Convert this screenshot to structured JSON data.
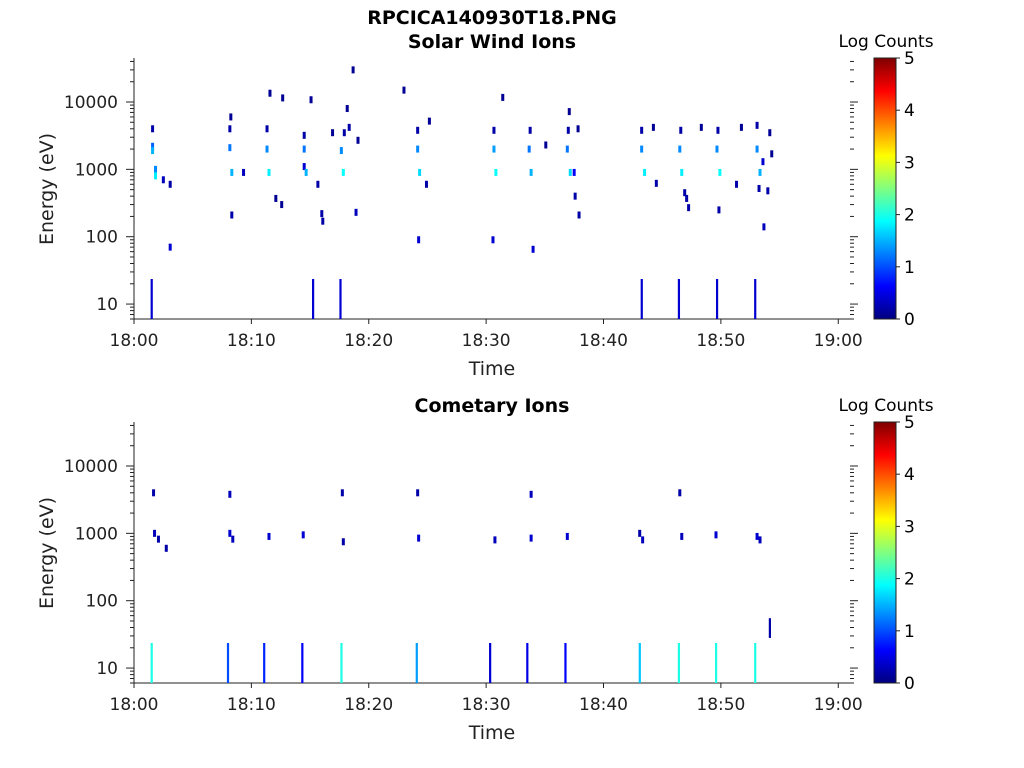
{
  "figure": {
    "title": "RPCICA140930T18.PNG"
  },
  "chart_data": [
    {
      "type": "heatmap",
      "title": "Solar Wind Ions",
      "xlabel": "Time",
      "ylabel": "Energy (eV)",
      "y_scale": "log",
      "xlim": [
        "18:00",
        "19:01"
      ],
      "ylim": [
        6,
        45000
      ],
      "x_tick_labels": [
        "18:00",
        "18:10",
        "18:20",
        "18:30",
        "18:40",
        "18:50",
        "19:00"
      ],
      "y_tick_labels": [
        "10",
        "100",
        "1000",
        "10000"
      ],
      "colorbar": {
        "label": "Log Counts",
        "range": [
          0,
          5
        ],
        "ticks": [
          "0",
          "1",
          "2",
          "3",
          "4",
          "5"
        ],
        "colormap": "jet"
      },
      "points": [
        {
          "t": "18:01:35",
          "e": 4000,
          "c": 0.2
        },
        {
          "t": "18:01:35",
          "e": 2200,
          "c": 1.1
        },
        {
          "t": "18:01:35",
          "e": 1900,
          "c": 1.5
        },
        {
          "t": "18:01:50",
          "e": 1000,
          "c": 1.3
        },
        {
          "t": "18:01:50",
          "e": 800,
          "c": 1.8
        },
        {
          "t": "18:02:30",
          "e": 700,
          "c": 0.3
        },
        {
          "t": "18:03:05",
          "e": 600,
          "c": 0.2
        },
        {
          "t": "18:03:05",
          "e": 70,
          "c": 0.4
        },
        {
          "t": "18:08:10",
          "e": 2100,
          "c": 1.2
        },
        {
          "t": "18:08:10",
          "e": 4000,
          "c": 0.2
        },
        {
          "t": "18:08:15",
          "e": 6000,
          "c": 0.1
        },
        {
          "t": "18:08:20",
          "e": 900,
          "c": 1.5
        },
        {
          "t": "18:08:20",
          "e": 210,
          "c": 0.2
        },
        {
          "t": "18:09:20",
          "e": 900,
          "c": 0.3
        },
        {
          "t": "18:11:20",
          "e": 2000,
          "c": 1.3
        },
        {
          "t": "18:11:20",
          "e": 4000,
          "c": 0.2
        },
        {
          "t": "18:11:30",
          "e": 900,
          "c": 1.8
        },
        {
          "t": "18:11:35",
          "e": 13500,
          "c": 0.1
        },
        {
          "t": "18:12:05",
          "e": 370,
          "c": 0.1
        },
        {
          "t": "18:12:35",
          "e": 300,
          "c": 0.1
        },
        {
          "t": "18:12:40",
          "e": 11500,
          "c": 0.1
        },
        {
          "t": "18:14:30",
          "e": 2000,
          "c": 1.2
        },
        {
          "t": "18:14:30",
          "e": 3200,
          "c": 0.2
        },
        {
          "t": "18:14:30",
          "e": 1100,
          "c": 0.4
        },
        {
          "t": "18:14:40",
          "e": 900,
          "c": 1.5
        },
        {
          "t": "18:15:05",
          "e": 10800,
          "c": 0.1
        },
        {
          "t": "18:15:40",
          "e": 600,
          "c": 0.2
        },
        {
          "t": "18:16:00",
          "e": 220,
          "c": 0.2
        },
        {
          "t": "18:16:05",
          "e": 170,
          "c": 0.2
        },
        {
          "t": "18:16:55",
          "e": 3500,
          "c": 0.1
        },
        {
          "t": "18:17:40",
          "e": 1900,
          "c": 1.3
        },
        {
          "t": "18:17:50",
          "e": 900,
          "c": 1.9
        },
        {
          "t": "18:17:55",
          "e": 3500,
          "c": 0.2
        },
        {
          "t": "18:18:20",
          "e": 4200,
          "c": 0.2
        },
        {
          "t": "18:18:10",
          "e": 8000,
          "c": 0.1
        },
        {
          "t": "18:18:40",
          "e": 30000,
          "c": 0.1
        },
        {
          "t": "18:18:55",
          "e": 230,
          "c": 0.3
        },
        {
          "t": "18:19:05",
          "e": 2700,
          "c": 0.1
        },
        {
          "t": "18:23:00",
          "e": 15000,
          "c": 0.1
        },
        {
          "t": "18:24:10",
          "e": 2000,
          "c": 1.3
        },
        {
          "t": "18:24:10",
          "e": 3800,
          "c": 0.2
        },
        {
          "t": "18:24:20",
          "e": 900,
          "c": 1.7
        },
        {
          "t": "18:24:15",
          "e": 90,
          "c": 0.4
        },
        {
          "t": "18:24:55",
          "e": 600,
          "c": 0.2
        },
        {
          "t": "18:25:10",
          "e": 5200,
          "c": 0.1
        },
        {
          "t": "18:30:40",
          "e": 2000,
          "c": 1.4
        },
        {
          "t": "18:30:40",
          "e": 3800,
          "c": 0.2
        },
        {
          "t": "18:30:50",
          "e": 900,
          "c": 1.9
        },
        {
          "t": "18:30:35",
          "e": 90,
          "c": 0.4
        },
        {
          "t": "18:31:25",
          "e": 11700,
          "c": 0.1
        },
        {
          "t": "18:33:40",
          "e": 2000,
          "c": 1.2
        },
        {
          "t": "18:33:45",
          "e": 3800,
          "c": 0.2
        },
        {
          "t": "18:33:50",
          "e": 900,
          "c": 1.5
        },
        {
          "t": "18:34:00",
          "e": 65,
          "c": 0.4
        },
        {
          "t": "18:35:05",
          "e": 2300,
          "c": 0.1
        },
        {
          "t": "18:36:55",
          "e": 2000,
          "c": 1.2
        },
        {
          "t": "18:37:00",
          "e": 3800,
          "c": 0.2
        },
        {
          "t": "18:37:05",
          "e": 7200,
          "c": 0.1
        },
        {
          "t": "18:37:10",
          "e": 900,
          "c": 1.7
        },
        {
          "t": "18:37:30",
          "e": 900,
          "c": 0.6
        },
        {
          "t": "18:37:35",
          "e": 400,
          "c": 0.2
        },
        {
          "t": "18:37:55",
          "e": 210,
          "c": 0.2
        },
        {
          "t": "18:37:50",
          "e": 4000,
          "c": 0.1
        },
        {
          "t": "18:43:15",
          "e": 2000,
          "c": 1.3
        },
        {
          "t": "18:43:15",
          "e": 3800,
          "c": 0.2
        },
        {
          "t": "18:43:30",
          "e": 900,
          "c": 1.8
        },
        {
          "t": "18:44:15",
          "e": 4200,
          "c": 0.1
        },
        {
          "t": "18:44:30",
          "e": 620,
          "c": 0.2
        },
        {
          "t": "18:46:30",
          "e": 2000,
          "c": 1.3
        },
        {
          "t": "18:46:35",
          "e": 3800,
          "c": 0.2
        },
        {
          "t": "18:46:40",
          "e": 900,
          "c": 1.8
        },
        {
          "t": "18:46:55",
          "e": 450,
          "c": 0.2
        },
        {
          "t": "18:47:05",
          "e": 370,
          "c": 0.2
        },
        {
          "t": "18:47:15",
          "e": 270,
          "c": 0.2
        },
        {
          "t": "18:48:20",
          "e": 4200,
          "c": 0.1
        },
        {
          "t": "18:49:40",
          "e": 2000,
          "c": 1.3
        },
        {
          "t": "18:49:45",
          "e": 3800,
          "c": 0.2
        },
        {
          "t": "18:49:55",
          "e": 900,
          "c": 1.9
        },
        {
          "t": "18:49:50",
          "e": 250,
          "c": 0.2
        },
        {
          "t": "18:51:20",
          "e": 600,
          "c": 0.2
        },
        {
          "t": "18:51:45",
          "e": 4200,
          "c": 0.1
        },
        {
          "t": "18:53:05",
          "e": 2000,
          "c": 1.3
        },
        {
          "t": "18:53:05",
          "e": 4500,
          "c": 0.2
        },
        {
          "t": "18:53:20",
          "e": 900,
          "c": 1.5
        },
        {
          "t": "18:53:35",
          "e": 1300,
          "c": 0.4
        },
        {
          "t": "18:53:15",
          "e": 520,
          "c": 0.2
        },
        {
          "t": "18:54:00",
          "e": 480,
          "c": 0.2
        },
        {
          "t": "18:53:40",
          "e": 140,
          "c": 0.3
        },
        {
          "t": "18:54:10",
          "e": 3500,
          "c": 0.1
        },
        {
          "t": "18:54:20",
          "e": 1700,
          "c": 0.1
        }
      ],
      "bars": [
        {
          "t": "18:01:30",
          "c": 0.4
        },
        {
          "t": "18:15:15",
          "c": 0.4
        },
        {
          "t": "18:17:35",
          "c": 0.4
        },
        {
          "t": "18:43:15",
          "c": 0.4
        },
        {
          "t": "18:46:25",
          "c": 0.4
        },
        {
          "t": "18:49:40",
          "c": 0.4
        },
        {
          "t": "18:52:55",
          "c": 0.4
        }
      ]
    },
    {
      "type": "heatmap",
      "title": "Cometary Ions",
      "xlabel": "Time",
      "ylabel": "Energy (eV)",
      "y_scale": "log",
      "xlim": [
        "18:00",
        "19:01"
      ],
      "ylim": [
        6,
        45000
      ],
      "x_tick_labels": [
        "18:00",
        "18:10",
        "18:20",
        "18:30",
        "18:40",
        "18:50",
        "19:00"
      ],
      "y_tick_labels": [
        "10",
        "100",
        "1000",
        "10000"
      ],
      "colorbar": {
        "label": "Log Counts",
        "range": [
          0,
          5
        ],
        "ticks": [
          "0",
          "1",
          "2",
          "3",
          "4",
          "5"
        ],
        "colormap": "jet"
      },
      "points": [
        {
          "t": "18:01:40",
          "e": 4000,
          "c": 0.2
        },
        {
          "t": "18:01:45",
          "e": 1000,
          "c": 0.3
        },
        {
          "t": "18:02:05",
          "e": 820,
          "c": 0.2
        },
        {
          "t": "18:02:45",
          "e": 600,
          "c": 0.2
        },
        {
          "t": "18:08:10",
          "e": 3800,
          "c": 0.3
        },
        {
          "t": "18:08:10",
          "e": 1000,
          "c": 0.4
        },
        {
          "t": "18:08:25",
          "e": 820,
          "c": 0.3
        },
        {
          "t": "18:11:30",
          "e": 900,
          "c": 0.4
        },
        {
          "t": "18:14:25",
          "e": 950,
          "c": 0.4
        },
        {
          "t": "18:17:45",
          "e": 4000,
          "c": 0.2
        },
        {
          "t": "18:17:50",
          "e": 750,
          "c": 0.2
        },
        {
          "t": "18:24:10",
          "e": 4000,
          "c": 0.2
        },
        {
          "t": "18:24:15",
          "e": 850,
          "c": 0.4
        },
        {
          "t": "18:30:45",
          "e": 800,
          "c": 0.3
        },
        {
          "t": "18:33:50",
          "e": 3800,
          "c": 0.3
        },
        {
          "t": "18:33:50",
          "e": 850,
          "c": 0.4
        },
        {
          "t": "18:36:55",
          "e": 900,
          "c": 0.4
        },
        {
          "t": "18:43:05",
          "e": 1000,
          "c": 0.2
        },
        {
          "t": "18:43:20",
          "e": 800,
          "c": 0.3
        },
        {
          "t": "18:46:30",
          "e": 4000,
          "c": 0.2
        },
        {
          "t": "18:46:40",
          "e": 900,
          "c": 0.3
        },
        {
          "t": "18:49:35",
          "e": 950,
          "c": 0.4
        },
        {
          "t": "18:53:05",
          "e": 900,
          "c": 0.4
        },
        {
          "t": "18:53:20",
          "e": 800,
          "c": 0.3
        }
      ],
      "bars": [
        {
          "t": "18:01:30",
          "c": 2.0
        },
        {
          "t": "18:08:00",
          "c": 1.0
        },
        {
          "t": "18:11:05",
          "c": 0.8
        },
        {
          "t": "18:14:20",
          "c": 0.6
        },
        {
          "t": "18:17:40",
          "c": 2.0
        },
        {
          "t": "18:24:05",
          "c": 1.4
        },
        {
          "t": "18:30:20",
          "c": 0.4
        },
        {
          "t": "18:33:30",
          "c": 0.5
        },
        {
          "t": "18:36:45",
          "c": 0.6
        },
        {
          "t": "18:43:05",
          "c": 1.6
        },
        {
          "t": "18:46:25",
          "c": 2.0
        },
        {
          "t": "18:49:35",
          "c": 2.0
        },
        {
          "t": "18:52:55",
          "c": 2.0
        }
      ],
      "extra_marks": [
        {
          "t": "18:54:10",
          "e_low": 28,
          "e_high": 55,
          "c": 0.2
        }
      ]
    }
  ]
}
